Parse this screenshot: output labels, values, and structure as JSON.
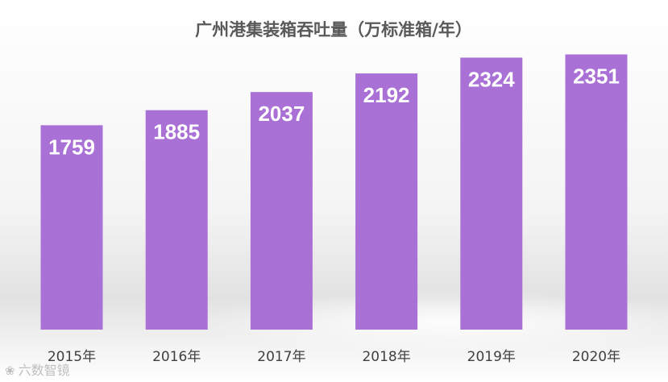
{
  "chart_data": {
    "type": "bar",
    "title": "广州港集装箱吞吐量（万标准箱/年）",
    "categories": [
      "2015年",
      "2016年",
      "2017年",
      "2018年",
      "2019年",
      "2020年"
    ],
    "series": [
      {
        "values": [
          1759,
          1885,
          2037,
          2192,
          2324,
          2351
        ]
      }
    ],
    "data_labels": [
      "1759",
      "1885",
      "2037",
      "2192",
      "2324",
      "2351"
    ],
    "xlabel": "",
    "ylabel": "",
    "grid": false,
    "legend": "none",
    "axis_visible": false
  },
  "colors": {
    "bar": "#a970d5",
    "title": "#595959",
    "label": "#ffffff",
    "category": "#404040"
  },
  "watermark": {
    "text": "六数智镜",
    "icon": "brain-logo-icon"
  }
}
